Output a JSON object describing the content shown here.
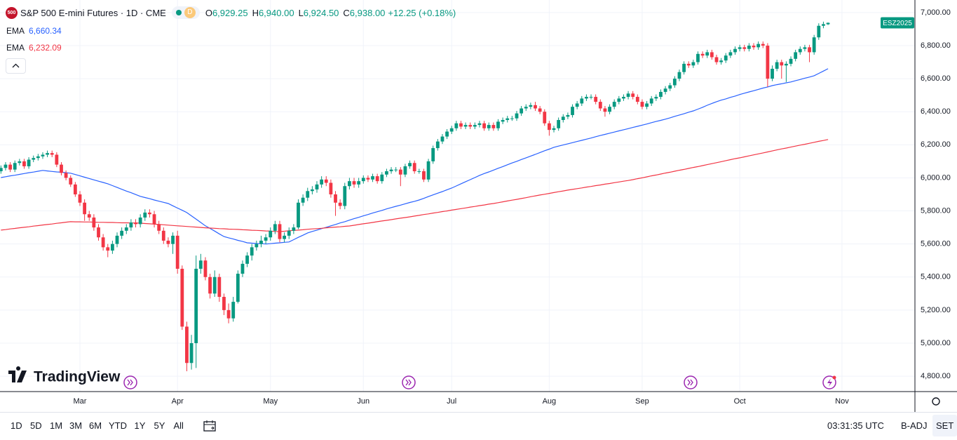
{
  "header": {
    "badge": "500",
    "symbol": "S&P 500 E-mini Futures · 1D · CME",
    "interval_badge": "D",
    "ohlc": [
      {
        "label": "O",
        "value": "6,929.25"
      },
      {
        "label": "H",
        "value": "6,940.00"
      },
      {
        "label": "L",
        "value": "6,924.50"
      },
      {
        "label": "C",
        "value": "6,938.00"
      }
    ],
    "change": "+12.25 (+0.18%)"
  },
  "chart_data": {
    "type": "candlestick",
    "up_color": "#089981",
    "down_color": "#f23645",
    "price_tag": "ESZ2025",
    "grid": true,
    "xlim": [
      -0.2,
      196.7
    ],
    "xticks": [
      {
        "value": 17,
        "label": "Mar"
      },
      {
        "value": 38,
        "label": "Apr"
      },
      {
        "value": 58,
        "label": "May"
      },
      {
        "value": 78,
        "label": "Jun"
      },
      {
        "value": 97,
        "label": "Jul"
      },
      {
        "value": 118,
        "label": "Aug"
      },
      {
        "value": 138,
        "label": "Sep"
      },
      {
        "value": 159,
        "label": "Oct"
      },
      {
        "value": 181,
        "label": "Nov"
      }
    ],
    "ylim": [
      4707,
      7076
    ],
    "yticks": [
      {
        "value": 4800,
        "label": "4,800.00"
      },
      {
        "value": 5000,
        "label": "5,000.00"
      },
      {
        "value": 5200,
        "label": "5,200.00"
      },
      {
        "value": 5400,
        "label": "5,400.00"
      },
      {
        "value": 5600,
        "label": "5,600.00"
      },
      {
        "value": 5800,
        "label": "5,800.00"
      },
      {
        "value": 6000,
        "label": "6,000.00"
      },
      {
        "value": 6200,
        "label": "6,200.00"
      },
      {
        "value": 6400,
        "label": "6,400.00"
      },
      {
        "value": 6600,
        "label": "6,600.00"
      },
      {
        "value": 6800,
        "label": "6,800.00"
      },
      {
        "value": 7000,
        "label": "7,000.00"
      }
    ],
    "open": [
      6040,
      6060,
      6080,
      6050,
      6090,
      6100,
      6070,
      6110,
      6120,
      6130,
      6140,
      6150,
      6140,
      6080,
      6030,
      6000,
      5960,
      5900,
      5850,
      5780,
      5760,
      5700,
      5640,
      5580,
      5560,
      5600,
      5650,
      5680,
      5700,
      5730,
      5720,
      5760,
      5790,
      5780,
      5720,
      5680,
      5620,
      5600,
      5650,
      5450,
      5100,
      4880,
      5000,
      5450,
      5500,
      5400,
      5300,
      5400,
      5280,
      5200,
      5150,
      5250,
      5420,
      5480,
      5530,
      5580,
      5600,
      5620,
      5640,
      5680,
      5720,
      5630,
      5650,
      5680,
      5700,
      5850,
      5880,
      5920,
      5930,
      5960,
      5990,
      5970,
      5900,
      5850,
      5830,
      5950,
      5980,
      5960,
      5980,
      6000,
      5990,
      6010,
      5980,
      6020,
      6040,
      6050,
      6050,
      6020,
      6070,
      6090,
      6040,
      6040,
      5990,
      6100,
      6180,
      6220,
      6250,
      6280,
      6300,
      6330,
      6310,
      6320,
      6310,
      6320,
      6330,
      6300,
      6320,
      6300,
      6340,
      6350,
      6360,
      6360,
      6390,
      6420,
      6430,
      6440,
      6420,
      6400,
      6330,
      6290,
      6300,
      6350,
      6370,
      6380,
      6430,
      6450,
      6480,
      6490,
      6490,
      6460,
      6420,
      6400,
      6430,
      6460,
      6480,
      6490,
      6510,
      6490,
      6460,
      6430,
      6450,
      6480,
      6490,
      6520,
      6540,
      6560,
      6600,
      6640,
      6690,
      6680,
      6700,
      6750,
      6740,
      6760,
      6730,
      6700,
      6710,
      6740,
      6760,
      6780,
      6790,
      6780,
      6800,
      6790,
      6810,
      6800,
      6600,
      6660,
      6700,
      6680,
      6690,
      6720,
      6760,
      6780,
      6790,
      6760,
      6850,
      6920,
      6929.25
    ],
    "high": [
      6075,
      6095,
      6095,
      6105,
      6115,
      6115,
      6125,
      6135,
      6145,
      6155,
      6165,
      6165,
      6155,
      6095,
      6045,
      6015,
      5975,
      5920,
      5870,
      5800,
      5780,
      5720,
      5660,
      5600,
      5620,
      5670,
      5700,
      5720,
      5750,
      5750,
      5780,
      5810,
      5810,
      5800,
      5740,
      5700,
      5640,
      5670,
      5680,
      5470,
      5130,
      5050,
      5530,
      5540,
      5520,
      5420,
      5440,
      5420,
      5300,
      5240,
      5280,
      5440,
      5500,
      5550,
      5600,
      5620,
      5650,
      5660,
      5700,
      5740,
      5740,
      5670,
      5700,
      5720,
      5870,
      5900,
      5940,
      5950,
      5980,
      6010,
      6010,
      5990,
      5920,
      5870,
      5970,
      6000,
      6000,
      6000,
      6015,
      6015,
      6025,
      6025,
      6035,
      6055,
      6065,
      6065,
      6065,
      6085,
      6105,
      6105,
      6055,
      6055,
      6115,
      6195,
      6235,
      6265,
      6295,
      6315,
      6345,
      6345,
      6335,
      6335,
      6335,
      6345,
      6345,
      6335,
      6335,
      6355,
      6365,
      6375,
      6375,
      6405,
      6435,
      6445,
      6455,
      6460,
      6435,
      6415,
      6345,
      6315,
      6365,
      6385,
      6395,
      6445,
      6465,
      6495,
      6505,
      6505,
      6505,
      6475,
      6435,
      6445,
      6475,
      6495,
      6505,
      6525,
      6525,
      6505,
      6475,
      6465,
      6495,
      6505,
      6535,
      6555,
      6575,
      6615,
      6655,
      6705,
      6705,
      6715,
      6765,
      6765,
      6775,
      6775,
      6745,
      6725,
      6755,
      6775,
      6795,
      6805,
      6805,
      6815,
      6815,
      6825,
      6825,
      6815,
      6680,
      6715,
      6715,
      6705,
      6735,
      6775,
      6795,
      6805,
      6805,
      6865,
      6935,
      6945,
      6940
    ],
    "low": [
      6025,
      6045,
      6035,
      6035,
      6075,
      6055,
      6055,
      6095,
      6105,
      6115,
      6125,
      6125,
      6065,
      6015,
      5985,
      5945,
      5885,
      5830,
      5740,
      5740,
      5680,
      5620,
      5560,
      5520,
      5540,
      5580,
      5630,
      5660,
      5680,
      5700,
      5700,
      5740,
      5760,
      5700,
      5660,
      5600,
      5580,
      5540,
      5420,
      5080,
      4830,
      4840,
      4850,
      5420,
      5380,
      5270,
      5280,
      5250,
      5170,
      5120,
      5130,
      5240,
      5400,
      5460,
      5500,
      5560,
      5580,
      5600,
      5620,
      5660,
      5610,
      5610,
      5630,
      5660,
      5690,
      5830,
      5860,
      5900,
      5910,
      5940,
      5950,
      5880,
      5770,
      5810,
      5810,
      5930,
      5940,
      5940,
      5965,
      5975,
      5975,
      5965,
      5965,
      6005,
      6025,
      6035,
      5950,
      6005,
      6055,
      6025,
      6025,
      5975,
      5975,
      6085,
      6165,
      6205,
      6235,
      6265,
      6285,
      6295,
      6295,
      6295,
      6295,
      6305,
      6285,
      6285,
      6285,
      6285,
      6325,
      6335,
      6345,
      6345,
      6375,
      6405,
      6415,
      6405,
      6385,
      6315,
      6255,
      6275,
      6285,
      6335,
      6355,
      6365,
      6415,
      6435,
      6465,
      6475,
      6445,
      6405,
      6370,
      6385,
      6415,
      6445,
      6465,
      6475,
      6475,
      6445,
      6415,
      6415,
      6435,
      6465,
      6475,
      6505,
      6525,
      6545,
      6585,
      6625,
      6665,
      6665,
      6685,
      6725,
      6725,
      6715,
      6685,
      6685,
      6695,
      6725,
      6745,
      6765,
      6765,
      6765,
      6775,
      6775,
      6785,
      6550,
      6585,
      6645,
      6600,
      6580,
      6675,
      6705,
      6745,
      6765,
      6700,
      6745,
      6835,
      6905,
      6924.5
    ],
    "close": [
      6060,
      6080,
      6050,
      6090,
      6100,
      6070,
      6110,
      6120,
      6130,
      6140,
      6150,
      6140,
      6080,
      6030,
      6000,
      5960,
      5900,
      5850,
      5780,
      5760,
      5700,
      5640,
      5580,
      5560,
      5600,
      5650,
      5680,
      5700,
      5730,
      5720,
      5760,
      5790,
      5780,
      5720,
      5680,
      5620,
      5600,
      5650,
      5450,
      5100,
      4880,
      5000,
      5450,
      5500,
      5400,
      5300,
      5400,
      5280,
      5200,
      5150,
      5250,
      5420,
      5480,
      5530,
      5580,
      5600,
      5620,
      5640,
      5680,
      5720,
      5630,
      5650,
      5680,
      5700,
      5850,
      5880,
      5920,
      5930,
      5960,
      5990,
      5970,
      5900,
      5850,
      5830,
      5950,
      5980,
      5960,
      5980,
      6000,
      5990,
      6010,
      5980,
      6020,
      6040,
      6050,
      6050,
      6020,
      6070,
      6090,
      6040,
      6040,
      5990,
      6100,
      6180,
      6220,
      6250,
      6280,
      6300,
      6330,
      6310,
      6320,
      6310,
      6320,
      6330,
      6300,
      6320,
      6300,
      6340,
      6350,
      6360,
      6360,
      6390,
      6420,
      6430,
      6440,
      6420,
      6400,
      6330,
      6290,
      6300,
      6350,
      6370,
      6380,
      6430,
      6450,
      6480,
      6490,
      6490,
      6460,
      6420,
      6400,
      6430,
      6460,
      6480,
      6490,
      6510,
      6490,
      6460,
      6430,
      6450,
      6480,
      6490,
      6520,
      6540,
      6560,
      6600,
      6640,
      6690,
      6680,
      6700,
      6750,
      6740,
      6760,
      6730,
      6700,
      6710,
      6740,
      6760,
      6780,
      6790,
      6780,
      6800,
      6790,
      6810,
      6800,
      6600,
      6660,
      6700,
      6680,
      6690,
      6720,
      6760,
      6780,
      6790,
      6760,
      6850,
      6920,
      6930,
      6938
    ],
    "series": [
      {
        "name": "EMA",
        "legend_value": "6,660.34",
        "color": "#2962ff",
        "values": [
          6002,
          6007,
          6012,
          6016,
          6021,
          6026,
          6031,
          6035,
          6040,
          6045,
          6042,
          6039,
          6036,
          6034,
          6031,
          6028,
          6020,
          6012,
          6004,
          5996,
          5988,
          5980,
          5972,
          5964,
          5953,
          5942,
          5931,
          5920,
          5910,
          5899,
          5888,
          5881,
          5874,
          5866,
          5859,
          5852,
          5845,
          5831,
          5817,
          5804,
          5790,
          5770,
          5750,
          5730,
          5710,
          5694,
          5678,
          5661,
          5645,
          5637,
          5630,
          5622,
          5615,
          5607,
          5605,
          5603,
          5602,
          5600,
          5602,
          5605,
          5607,
          5610,
          5612,
          5626,
          5640,
          5653,
          5667,
          5676,
          5684,
          5693,
          5701,
          5710,
          5718,
          5727,
          5735,
          5744,
          5753,
          5761,
          5770,
          5778,
          5787,
          5795,
          5803,
          5812,
          5820,
          5828,
          5835,
          5843,
          5851,
          5858,
          5866,
          5876,
          5887,
          5897,
          5907,
          5917,
          5928,
          5938,
          5951,
          5964,
          5977,
          5989,
          6002,
          6015,
          6026,
          6036,
          6047,
          6058,
          6068,
          6079,
          6090,
          6100,
          6111,
          6121,
          6132,
          6142,
          6153,
          6164,
          6174,
          6185,
          6192,
          6199,
          6206,
          6213,
          6220,
          6227,
          6234,
          6241,
          6249,
          6256,
          6263,
          6270,
          6277,
          6284,
          6291,
          6298,
          6305,
          6312,
          6319,
          6326,
          6334,
          6341,
          6348,
          6355,
          6363,
          6372,
          6380,
          6388,
          6397,
          6405,
          6416,
          6427,
          6439,
          6450,
          6461,
          6470,
          6478,
          6487,
          6495,
          6504,
          6512,
          6520,
          6527,
          6535,
          6543,
          6550,
          6558,
          6564,
          6569,
          6575,
          6580,
          6588,
          6595,
          6603,
          6610,
          6618,
          6632,
          6646,
          6660.34
        ]
      },
      {
        "name": "EMA",
        "legend_value": "6,232.09",
        "color": "#f23645",
        "values": [
          5684,
          5687,
          5691,
          5694,
          5698,
          5701,
          5704,
          5708,
          5711,
          5715,
          5718,
          5721,
          5725,
          5728,
          5732,
          5735,
          5734,
          5734,
          5733,
          5733,
          5732,
          5731,
          5731,
          5730,
          5730,
          5729,
          5728,
          5728,
          5727,
          5727,
          5726,
          5724,
          5722,
          5720,
          5718,
          5716,
          5714,
          5712,
          5710,
          5708,
          5706,
          5704,
          5702,
          5700,
          5698,
          5696,
          5695,
          5693,
          5692,
          5690,
          5689,
          5688,
          5686,
          5685,
          5683,
          5682,
          5681,
          5679,
          5678,
          5676,
          5675,
          5677,
          5680,
          5682,
          5684,
          5686,
          5689,
          5691,
          5693,
          5695,
          5698,
          5700,
          5702,
          5704,
          5707,
          5709,
          5713,
          5718,
          5722,
          5726,
          5730,
          5735,
          5739,
          5743,
          5747,
          5752,
          5756,
          5760,
          5764,
          5769,
          5773,
          5778,
          5782,
          5787,
          5791,
          5796,
          5800,
          5805,
          5809,
          5814,
          5818,
          5823,
          5827,
          5832,
          5836,
          5841,
          5845,
          5850,
          5855,
          5860,
          5865,
          5870,
          5875,
          5880,
          5886,
          5891,
          5896,
          5901,
          5906,
          5911,
          5916,
          5921,
          5926,
          5930,
          5935,
          5939,
          5944,
          5948,
          5953,
          5957,
          5962,
          5966,
          5971,
          5975,
          5980,
          5984,
          5989,
          5995,
          6000,
          6006,
          6012,
          6017,
          6023,
          6029,
          6034,
          6040,
          6046,
          6051,
          6057,
          6063,
          6068,
          6074,
          6080,
          6086,
          6092,
          6098,
          6104,
          6110,
          6116,
          6121,
          6127,
          6133,
          6139,
          6145,
          6151,
          6157,
          6163,
          6169,
          6175,
          6180,
          6186,
          6192,
          6198,
          6203,
          6209,
          6215,
          6221,
          6226,
          6232.09
        ]
      }
    ]
  },
  "logo": "TradingView",
  "toolbar": {
    "ranges": [
      "1D",
      "5D",
      "1M",
      "3M",
      "6M",
      "YTD",
      "1Y",
      "5Y",
      "All"
    ],
    "time": "03:31:35 UTC",
    "adjust": "B-ADJ",
    "settings": "SET"
  }
}
